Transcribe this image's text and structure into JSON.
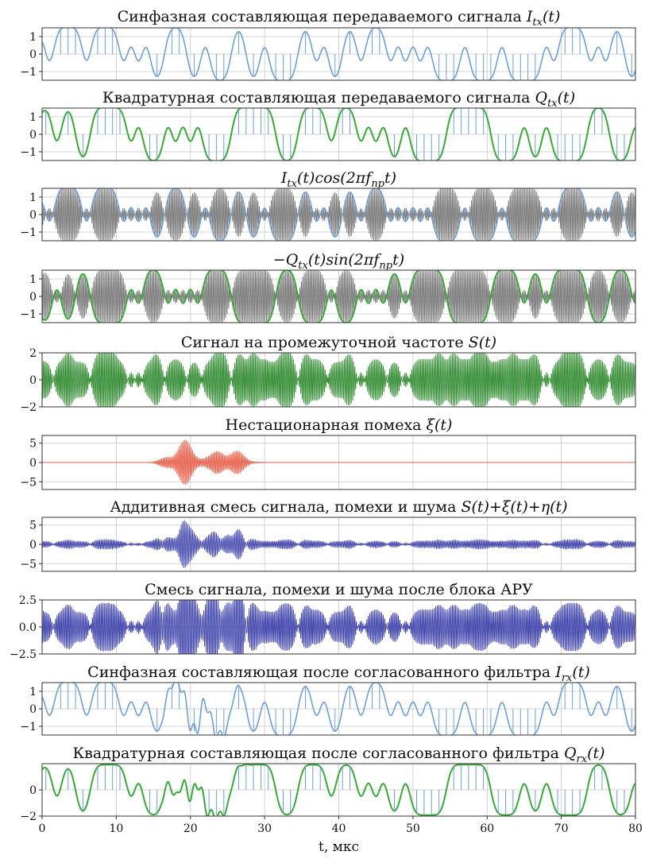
{
  "figure": {
    "xlabel": "t, мкс",
    "xlim": [
      0,
      80
    ],
    "xticks": [
      "0",
      "10",
      "20",
      "30",
      "40",
      "50",
      "60",
      "70",
      "80"
    ]
  },
  "chart_data": [
    {
      "type": "line",
      "title": "Синфазная составляющая передаваемого сигнала",
      "title_math": {
        "main": "I",
        "sub": "tx",
        "arg": "(t)"
      },
      "ylim": [
        -1.5,
        1.5
      ],
      "yticks": [
        "1",
        "0",
        "−1"
      ],
      "grid": true,
      "series": [
        {
          "kind": "envelope",
          "color": "#6f9fd6"
        },
        {
          "kind": "stems",
          "color": "#6f9fd6"
        }
      ]
    },
    {
      "type": "line",
      "title": "Квадратурная составляющая передаваемого сигнала",
      "title_math": {
        "main": "Q",
        "sub": "tx",
        "arg": "(t)"
      },
      "ylim": [
        -1.5,
        1.5
      ],
      "yticks": [
        "1",
        "0",
        "−1"
      ],
      "grid": true,
      "series": [
        {
          "kind": "envelope",
          "color": "#3aa83a"
        },
        {
          "kind": "stems",
          "color": "#6f9fd6"
        }
      ]
    },
    {
      "type": "line",
      "title": "",
      "title_math": {
        "pre": "",
        "main": "I",
        "sub": "tx",
        "mid": "(t)cos(2π",
        "f": "f",
        "fsub": "пр",
        "end": "t)"
      },
      "ylim": [
        -1.5,
        1.5
      ],
      "yticks": [
        "1",
        "0",
        "−1"
      ],
      "grid": true,
      "series": [
        {
          "kind": "carrier",
          "color": "#777777"
        },
        {
          "kind": "envelope",
          "color": "#6f9fd6"
        }
      ]
    },
    {
      "type": "line",
      "title": "",
      "title_math": {
        "pre": "−",
        "main": "Q",
        "sub": "tx",
        "mid": "(t)sin(2π",
        "f": "f",
        "fsub": "пр",
        "end": "t)"
      },
      "ylim": [
        -1.5,
        1.5
      ],
      "yticks": [
        "1",
        "0",
        "−1"
      ],
      "grid": true,
      "series": [
        {
          "kind": "carrier",
          "color": "#777777"
        },
        {
          "kind": "envelope",
          "color": "#3aa83a"
        }
      ]
    },
    {
      "type": "line",
      "title": "Сигнал на промежуточной частоте",
      "title_math": {
        "main": "S",
        "arg": "(t)"
      },
      "ylim": [
        -2,
        2
      ],
      "yticks": [
        "2",
        "0",
        "−2"
      ],
      "grid": true,
      "series": [
        {
          "kind": "carrier",
          "color": "#2f8a2f"
        }
      ]
    },
    {
      "type": "line",
      "title": "Нестационарная помеха",
      "title_math": {
        "main": "ξ",
        "arg": "(t)"
      },
      "ylim": [
        -7,
        7
      ],
      "yticks": [
        "5",
        "0",
        "−5"
      ],
      "grid": true,
      "series": [
        {
          "kind": "burst",
          "color": "#e8604c"
        }
      ]
    },
    {
      "type": "line",
      "title": "Аддитивная смесь сигнала, помехи и шума",
      "title_math": {
        "expr": "S(t)+ξ(t)+η(t)"
      },
      "ylim": [
        -7,
        7
      ],
      "yticks": [
        "5",
        "0",
        "−5"
      ],
      "grid": true,
      "series": [
        {
          "kind": "mix",
          "color": "#3b3fa8"
        }
      ]
    },
    {
      "type": "line",
      "title": "Смесь сигнала, помехи и шума после блока АРУ",
      "ylim": [
        -2.5,
        2.5
      ],
      "yticks": [
        "2.5",
        "0.0",
        "−2.5"
      ],
      "grid": true,
      "series": [
        {
          "kind": "agc",
          "color": "#3b3fa8"
        }
      ]
    },
    {
      "type": "line",
      "title": "Синфазная составляющая после согласованного фильтра",
      "title_math": {
        "main": "I",
        "sub": "rx",
        "arg": "(t)"
      },
      "ylim": [
        -1.5,
        1.5
      ],
      "yticks": [
        "1",
        "0",
        "−1"
      ],
      "grid": true,
      "series": [
        {
          "kind": "envelope",
          "color": "#6f9fd6"
        },
        {
          "kind": "stems",
          "color": "#6f9fd6"
        }
      ]
    },
    {
      "type": "line",
      "title": "Квадратурная составляющая после согласованного фильтра",
      "title_math": {
        "main": "Q",
        "sub": "rx",
        "arg": "(t)"
      },
      "ylim": [
        -2,
        2
      ],
      "yticks": [
        "0",
        "−2"
      ],
      "grid": true,
      "series": [
        {
          "kind": "envelope",
          "color": "#3aa83a"
        },
        {
          "kind": "stems",
          "color": "#6f9fd6"
        }
      ]
    }
  ]
}
